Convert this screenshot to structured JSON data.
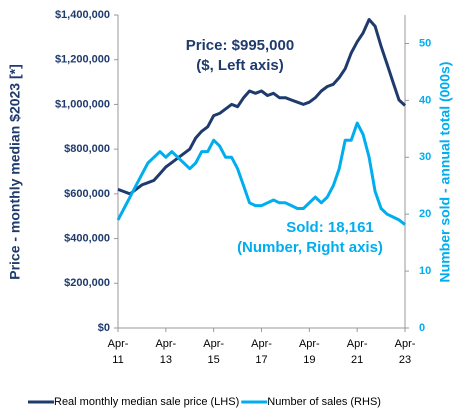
{
  "chart_data": {
    "type": "line",
    "x": [
      "Apr-11",
      "Jul-11",
      "Oct-11",
      "Jan-12",
      "Apr-12",
      "Jul-12",
      "Oct-12",
      "Jan-13",
      "Apr-13",
      "Jul-13",
      "Oct-13",
      "Jan-14",
      "Apr-14",
      "Jul-14",
      "Oct-14",
      "Jan-15",
      "Apr-15",
      "Jul-15",
      "Oct-15",
      "Jan-16",
      "Apr-16",
      "Jul-16",
      "Oct-16",
      "Jan-17",
      "Apr-17",
      "Jul-17",
      "Oct-17",
      "Jan-18",
      "Apr-18",
      "Jul-18",
      "Oct-18",
      "Jan-19",
      "Apr-19",
      "Jul-19",
      "Oct-19",
      "Jan-20",
      "Apr-20",
      "Jul-20",
      "Oct-20",
      "Jan-21",
      "Apr-21",
      "Jul-21",
      "Oct-21",
      "Jan-22",
      "Apr-22",
      "Jul-22",
      "Oct-22",
      "Jan-23",
      "Apr-23"
    ],
    "series": [
      {
        "name": "Real monthly median sale price (LHS)",
        "color": "#1f3b6e",
        "axis": "y",
        "values": [
          620000,
          610000,
          600000,
          620000,
          640000,
          650000,
          660000,
          690000,
          720000,
          740000,
          760000,
          780000,
          800000,
          850000,
          880000,
          900000,
          950000,
          960000,
          980000,
          1000000,
          990000,
          1030000,
          1060000,
          1050000,
          1060000,
          1040000,
          1050000,
          1030000,
          1030000,
          1020000,
          1010000,
          1000000,
          1010000,
          1030000,
          1060000,
          1080000,
          1090000,
          1120000,
          1160000,
          1230000,
          1280000,
          1320000,
          1380000,
          1350000,
          1260000,
          1180000,
          1100000,
          1020000,
          995000
        ]
      },
      {
        "name": "Number of sales (RHS)",
        "color": "#00aeef",
        "axis": "y2",
        "values": [
          19,
          21,
          23,
          25,
          27,
          29,
          30,
          31,
          30,
          31,
          30,
          29,
          28,
          29,
          31,
          31,
          33,
          32,
          30,
          30,
          28,
          25,
          22,
          21.5,
          21.5,
          22,
          22.5,
          22,
          22,
          21.5,
          21,
          21,
          22,
          23,
          22,
          23,
          25,
          28,
          33,
          33,
          36,
          34,
          30,
          24,
          21,
          20,
          19.5,
          19,
          18.161
        ]
      }
    ],
    "ylabel": "Price - monthly median $2023 [*]",
    "y2label": "Number sold - annual total (000s)",
    "ylim": [
      0,
      1400000
    ],
    "yticks": [
      {
        "value": 0,
        "label": "$0"
      },
      {
        "value": 200000,
        "label": "$200,000"
      },
      {
        "value": 400000,
        "label": "$400,000"
      },
      {
        "value": 600000,
        "label": "$600,000"
      },
      {
        "value": 800000,
        "label": "$800,000"
      },
      {
        "value": 1000000,
        "label": "$1,000,000"
      },
      {
        "value": 1200000,
        "label": "$1,200,000"
      },
      {
        "value": 1400000,
        "label": "$1,400,000"
      }
    ],
    "y2lim": [
      0,
      55
    ],
    "y2ticks": [
      0,
      10,
      20,
      30,
      40,
      50
    ],
    "xticks": [
      {
        "value": "Apr-11",
        "label": "Apr-\n11"
      },
      {
        "value": "Apr-13",
        "label": "Apr-\n13"
      },
      {
        "value": "Apr-15",
        "label": "Apr-\n15"
      },
      {
        "value": "Apr-17",
        "label": "Apr-\n17"
      },
      {
        "value": "Apr-19",
        "label": "Apr-\n19"
      },
      {
        "value": "Apr-21",
        "label": "Apr-\n21"
      },
      {
        "value": "Apr-23",
        "label": "Apr-\n23"
      }
    ],
    "annotations": [
      {
        "text": "Price: $995,000",
        "series": 0
      },
      {
        "text": "($, Left axis)",
        "series": 0
      },
      {
        "text": "Sold: 18,161",
        "series": 1
      },
      {
        "text": "(Number, Right axis)",
        "series": 1
      }
    ],
    "grid": false,
    "legend": "bottom"
  }
}
